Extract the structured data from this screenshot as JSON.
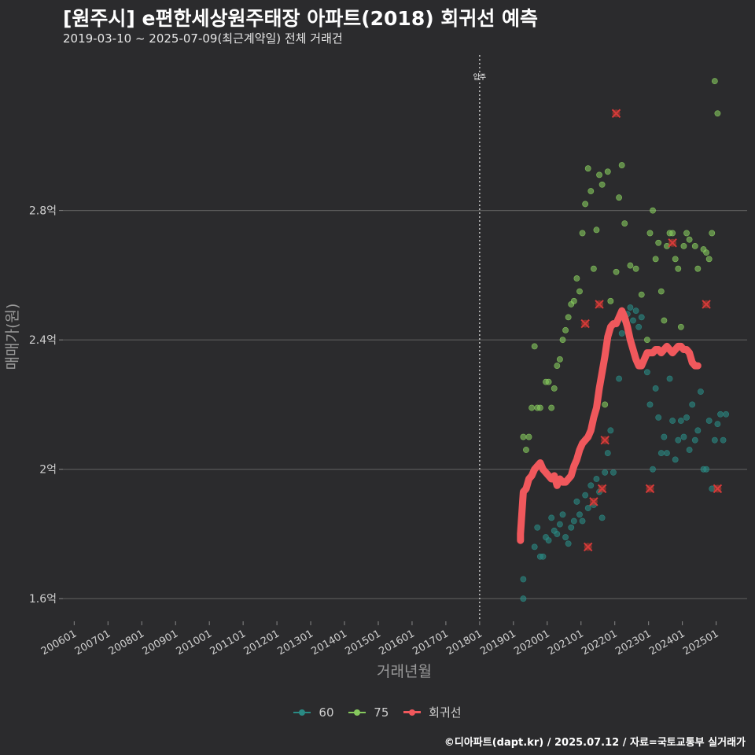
{
  "header": {
    "title": "[원주시] e편한세상원주태장 아파트(2018) 회귀선 예측",
    "subtitle": "2019-03-10 ~ 2025-07-09(최근계약일) 전체 거래건"
  },
  "credit": "©디아파트(dapt.kr) / 2025.07.12 / 자료=국토교통부 실거래가",
  "colors": {
    "background": "#2b2b2d",
    "grid": "#5c5c5c",
    "series_60": "#2a8a84",
    "series_75": "#86c95d",
    "regression": "#f0585c",
    "outlier": "#c0392b"
  },
  "legend": [
    {
      "label": "60",
      "kind": "point",
      "color": "#2a8a84"
    },
    {
      "label": "75",
      "kind": "point",
      "color": "#86c95d"
    },
    {
      "label": "회귀선",
      "kind": "line",
      "color": "#f0585c"
    }
  ],
  "chart_data": {
    "type": "scatter",
    "xlabel": "거래년월",
    "ylabel": "매매가(원)",
    "x_range": [
      "2005-09",
      "2025-12"
    ],
    "ylim": [
      1.53,
      3.3
    ],
    "y_unit": "억",
    "y_ticks": [
      {
        "value": 1.6,
        "label": "1.6억"
      },
      {
        "value": 2.0,
        "label": "2억"
      },
      {
        "value": 2.4,
        "label": "2.4억"
      },
      {
        "value": 2.8,
        "label": "2.8억"
      }
    ],
    "x_ticks": [
      "200601",
      "200701",
      "200801",
      "200901",
      "201001",
      "201101",
      "201201",
      "201301",
      "201401",
      "201501",
      "201601",
      "201701",
      "201801",
      "201901",
      "202001",
      "202101",
      "202201",
      "202301",
      "202401",
      "202501"
    ],
    "grid": true,
    "legend_position": "bottom",
    "reference_line": {
      "date": "2018-01",
      "label": "입주"
    },
    "series": [
      {
        "name": "60",
        "points": [
          [
            "2019-03",
            1.79
          ],
          [
            "2019-04",
            1.6
          ],
          [
            "2019-04",
            1.66
          ],
          [
            "2019-08",
            1.76
          ],
          [
            "2019-09",
            1.82
          ],
          [
            "2019-10",
            1.73
          ],
          [
            "2019-11",
            1.73
          ],
          [
            "2019-12",
            1.79
          ],
          [
            "2020-01",
            1.78
          ],
          [
            "2020-02",
            1.85
          ],
          [
            "2020-03",
            1.81
          ],
          [
            "2020-04",
            1.8
          ],
          [
            "2020-05",
            1.83
          ],
          [
            "2020-06",
            1.86
          ],
          [
            "2020-07",
            1.79
          ],
          [
            "2020-08",
            1.77
          ],
          [
            "2020-09",
            1.82
          ],
          [
            "2020-10",
            1.84
          ],
          [
            "2020-11",
            1.9
          ],
          [
            "2020-12",
            1.86
          ],
          [
            "2021-01",
            1.84
          ],
          [
            "2021-02",
            1.92
          ],
          [
            "2021-03",
            1.88
          ],
          [
            "2021-04",
            1.95
          ],
          [
            "2021-05",
            1.89
          ],
          [
            "2021-06",
            1.97
          ],
          [
            "2021-07",
            1.93
          ],
          [
            "2021-08",
            1.85
          ],
          [
            "2021-09",
            1.99
          ],
          [
            "2021-10",
            2.05
          ],
          [
            "2021-11",
            2.12
          ],
          [
            "2021-12",
            1.99
          ],
          [
            "2022-02",
            2.28
          ],
          [
            "2022-03",
            2.42
          ],
          [
            "2022-04",
            2.46
          ],
          [
            "2022-05",
            2.48
          ],
          [
            "2022-06",
            2.5
          ],
          [
            "2022-07",
            2.46
          ],
          [
            "2022-08",
            2.49
          ],
          [
            "2022-09",
            2.44
          ],
          [
            "2022-10",
            2.47
          ],
          [
            "2022-12",
            2.3
          ],
          [
            "2023-01",
            2.2
          ],
          [
            "2023-02",
            2.0
          ],
          [
            "2023-03",
            2.25
          ],
          [
            "2023-04",
            2.16
          ],
          [
            "2023-05",
            2.05
          ],
          [
            "2023-06",
            2.1
          ],
          [
            "2023-07",
            2.05
          ],
          [
            "2023-08",
            2.28
          ],
          [
            "2023-09",
            2.15
          ],
          [
            "2023-10",
            2.03
          ],
          [
            "2023-11",
            2.09
          ],
          [
            "2023-12",
            2.15
          ],
          [
            "2024-01",
            2.1
          ],
          [
            "2024-02",
            2.16
          ],
          [
            "2024-03",
            2.06
          ],
          [
            "2024-04",
            2.2
          ],
          [
            "2024-05",
            2.09
          ],
          [
            "2024-06",
            2.12
          ],
          [
            "2024-07",
            2.24
          ],
          [
            "2024-08",
            2.0
          ],
          [
            "2024-09",
            2.0
          ],
          [
            "2024-10",
            2.15
          ],
          [
            "2024-11",
            1.94
          ],
          [
            "2024-12",
            2.09
          ],
          [
            "2025-01",
            2.14
          ],
          [
            "2025-02",
            2.17
          ],
          [
            "2025-03",
            2.09
          ],
          [
            "2025-04",
            2.17
          ]
        ]
      },
      {
        "name": "75",
        "points": [
          [
            "2019-04",
            2.1
          ],
          [
            "2019-05",
            2.06
          ],
          [
            "2019-06",
            2.1
          ],
          [
            "2019-07",
            2.19
          ],
          [
            "2019-08",
            2.38
          ],
          [
            "2019-09",
            2.19
          ],
          [
            "2019-10",
            2.19
          ],
          [
            "2019-12",
            2.27
          ],
          [
            "2020-01",
            2.27
          ],
          [
            "2020-02",
            2.19
          ],
          [
            "2020-03",
            2.25
          ],
          [
            "2020-04",
            2.32
          ],
          [
            "2020-05",
            2.34
          ],
          [
            "2020-06",
            2.4
          ],
          [
            "2020-07",
            2.43
          ],
          [
            "2020-08",
            2.47
          ],
          [
            "2020-09",
            2.51
          ],
          [
            "2020-10",
            2.52
          ],
          [
            "2020-11",
            2.59
          ],
          [
            "2020-12",
            2.55
          ],
          [
            "2021-01",
            2.73
          ],
          [
            "2021-02",
            2.82
          ],
          [
            "2021-03",
            2.93
          ],
          [
            "2021-04",
            2.86
          ],
          [
            "2021-05",
            2.62
          ],
          [
            "2021-06",
            2.74
          ],
          [
            "2021-07",
            2.91
          ],
          [
            "2021-08",
            2.88
          ],
          [
            "2021-09",
            2.2
          ],
          [
            "2021-10",
            2.92
          ],
          [
            "2021-11",
            2.52
          ],
          [
            "2022-01",
            2.61
          ],
          [
            "2022-02",
            2.84
          ],
          [
            "2022-03",
            2.94
          ],
          [
            "2022-04",
            2.76
          ],
          [
            "2022-06",
            2.63
          ],
          [
            "2022-08",
            2.62
          ],
          [
            "2022-10",
            2.54
          ],
          [
            "2022-12",
            2.4
          ],
          [
            "2023-01",
            2.73
          ],
          [
            "2023-02",
            2.8
          ],
          [
            "2023-03",
            2.65
          ],
          [
            "2023-04",
            2.7
          ],
          [
            "2023-05",
            2.55
          ],
          [
            "2023-06",
            2.46
          ],
          [
            "2023-07",
            2.69
          ],
          [
            "2023-08",
            2.73
          ],
          [
            "2023-09",
            2.73
          ],
          [
            "2023-10",
            2.65
          ],
          [
            "2023-11",
            2.62
          ],
          [
            "2023-12",
            2.44
          ],
          [
            "2024-01",
            2.69
          ],
          [
            "2024-02",
            2.73
          ],
          [
            "2024-03",
            2.71
          ],
          [
            "2024-05",
            2.69
          ],
          [
            "2024-06",
            2.62
          ],
          [
            "2024-08",
            2.68
          ],
          [
            "2024-09",
            2.67
          ],
          [
            "2024-10",
            2.65
          ],
          [
            "2024-11",
            2.73
          ],
          [
            "2024-12",
            3.2
          ],
          [
            "2025-01",
            3.1
          ]
        ]
      },
      {
        "name": "회귀선",
        "points": [
          [
            "2019-03",
            1.78
          ],
          [
            "2019-03",
            1.8
          ],
          [
            "2019-04",
            1.93
          ],
          [
            "2019-05",
            1.94
          ],
          [
            "2019-06",
            1.97
          ],
          [
            "2019-07",
            1.98
          ],
          [
            "2019-08",
            2.0
          ],
          [
            "2019-09",
            2.01
          ],
          [
            "2019-10",
            2.02
          ],
          [
            "2019-11",
            2.0
          ],
          [
            "2019-12",
            1.99
          ],
          [
            "2020-01",
            1.98
          ],
          [
            "2020-02",
            1.97
          ],
          [
            "2020-03",
            1.98
          ],
          [
            "2020-04",
            1.95
          ],
          [
            "2020-05",
            1.97
          ],
          [
            "2020-06",
            1.96
          ],
          [
            "2020-07",
            1.96
          ],
          [
            "2020-08",
            1.97
          ],
          [
            "2020-09",
            1.98
          ],
          [
            "2020-10",
            2.01
          ],
          [
            "2020-11",
            2.03
          ],
          [
            "2020-12",
            2.06
          ],
          [
            "2021-01",
            2.08
          ],
          [
            "2021-02",
            2.09
          ],
          [
            "2021-03",
            2.1
          ],
          [
            "2021-04",
            2.12
          ],
          [
            "2021-05",
            2.16
          ],
          [
            "2021-06",
            2.19
          ],
          [
            "2021-07",
            2.25
          ],
          [
            "2021-08",
            2.3
          ],
          [
            "2021-09",
            2.35
          ],
          [
            "2021-10",
            2.41
          ],
          [
            "2021-11",
            2.44
          ],
          [
            "2021-12",
            2.45
          ],
          [
            "2022-01",
            2.45
          ],
          [
            "2022-02",
            2.47
          ],
          [
            "2022-03",
            2.49
          ],
          [
            "2022-04",
            2.47
          ],
          [
            "2022-05",
            2.44
          ],
          [
            "2022-06",
            2.4
          ],
          [
            "2022-07",
            2.37
          ],
          [
            "2022-08",
            2.34
          ],
          [
            "2022-09",
            2.32
          ],
          [
            "2022-10",
            2.32
          ],
          [
            "2022-11",
            2.34
          ],
          [
            "2022-12",
            2.36
          ],
          [
            "2023-01",
            2.36
          ],
          [
            "2023-02",
            2.36
          ],
          [
            "2023-03",
            2.37
          ],
          [
            "2023-04",
            2.37
          ],
          [
            "2023-05",
            2.36
          ],
          [
            "2023-06",
            2.37
          ],
          [
            "2023-07",
            2.38
          ],
          [
            "2023-08",
            2.37
          ],
          [
            "2023-09",
            2.36
          ],
          [
            "2023-10",
            2.37
          ],
          [
            "2023-11",
            2.38
          ],
          [
            "2023-12",
            2.38
          ],
          [
            "2024-01",
            2.37
          ],
          [
            "2024-02",
            2.37
          ],
          [
            "2024-03",
            2.36
          ],
          [
            "2024-04",
            2.33
          ],
          [
            "2024-05",
            2.32
          ],
          [
            "2024-06",
            2.32
          ]
        ]
      }
    ],
    "outliers": [
      [
        "2021-02",
        2.45
      ],
      [
        "2021-03",
        1.76
      ],
      [
        "2021-05",
        1.9
      ],
      [
        "2021-07",
        2.51
      ],
      [
        "2021-08",
        1.94
      ],
      [
        "2021-09",
        2.09
      ],
      [
        "2022-01",
        3.1
      ],
      [
        "2023-01",
        1.94
      ],
      [
        "2023-09",
        2.7
      ],
      [
        "2024-09",
        2.51
      ],
      [
        "2025-01",
        1.94
      ]
    ]
  }
}
